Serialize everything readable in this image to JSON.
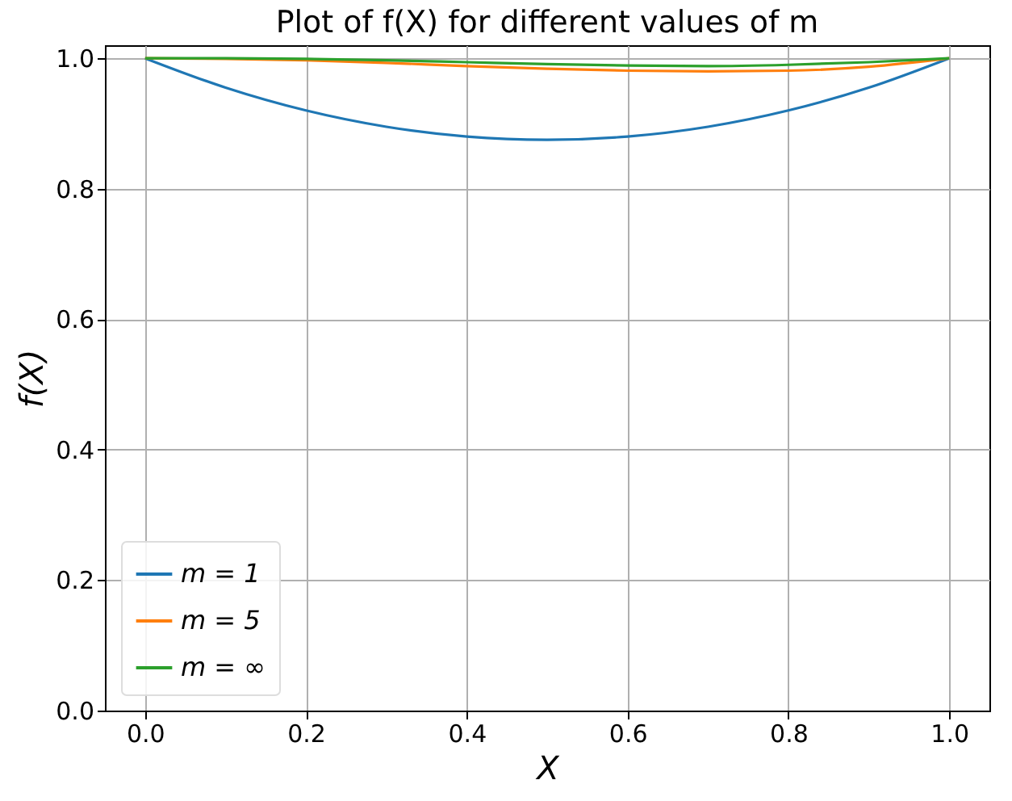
{
  "chart_data": {
    "type": "line",
    "title": "Plot of f(X) for different values of m",
    "xlabel": "X",
    "ylabel": "f(X)",
    "x": [
      0,
      0.1,
      0.2,
      0.3,
      0.4,
      0.5,
      0.6,
      0.7,
      0.8,
      0.9,
      1
    ],
    "series": [
      {
        "name": "m = 1",
        "color": "#1f77b4",
        "values": [
          1,
          0.955,
          0.92,
          0.895,
          0.88,
          0.875,
          0.88,
          0.895,
          0.92,
          0.955,
          1
        ]
      },
      {
        "name": "m = 5",
        "color": "#ff7f0e",
        "values": [
          1,
          0.999,
          0.997,
          0.993,
          0.988,
          0.984,
          0.981,
          0.98,
          0.981,
          0.987,
          1
        ]
      },
      {
        "name": "m = ∞",
        "color": "#2ca02c",
        "values": [
          1,
          1,
          0.999,
          0.997,
          0.994,
          0.991,
          0.989,
          0.988,
          0.99,
          0.994,
          1
        ]
      }
    ],
    "xlim": [
      -0.05,
      1.05
    ],
    "ylim": [
      0,
      1.02
    ],
    "xticks": [
      {
        "value": 0,
        "label": "0.0"
      },
      0.2,
      0.4,
      0.6,
      0.8,
      {
        "value": 1,
        "label": "1.0"
      }
    ],
    "yticks": [
      {
        "value": 0,
        "label": "0.0"
      },
      0.2,
      0.4,
      0.6,
      0.8,
      {
        "value": 1,
        "label": "1.0"
      }
    ],
    "grid": true,
    "legend": "bottom left",
    "marker": "none",
    "line_style": "solid"
  }
}
